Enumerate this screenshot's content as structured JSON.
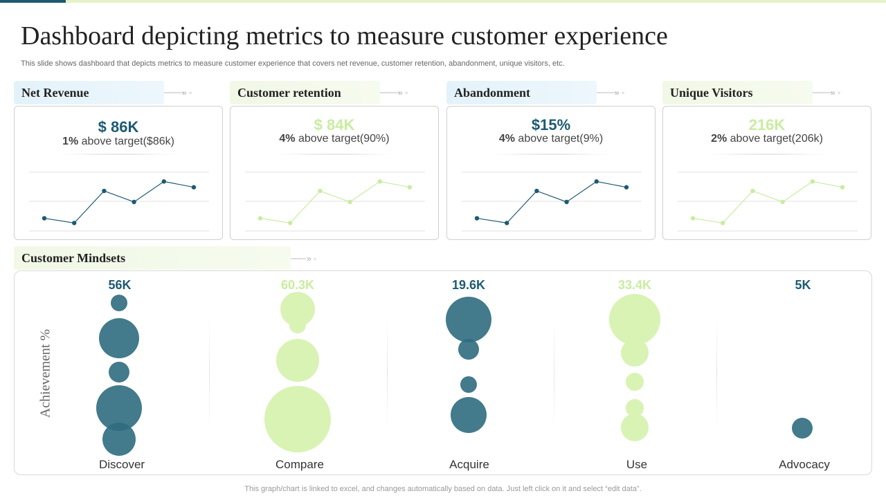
{
  "title": "Dashboard depicting metrics to measure customer experience",
  "subtitle": "This slide shows dashboard that depicts metrics to measure customer experience that covers net revenue, customer retention, abandonment, unique visitors, etc.",
  "arrow_glyph": "» ◦",
  "colors": {
    "dark": "#1c5a72",
    "dark_bubble": "#2f6b80",
    "light": "#c9eca0",
    "light_bubble": "#d8f3b3"
  },
  "cards": [
    {
      "label": "Net Revenue",
      "value": "$ 86K",
      "note_bold": "1%",
      "note_rest": " above target($86k)",
      "theme": "dark"
    },
    {
      "label": "Customer retention",
      "value": "$ 84K",
      "note_bold": "4%",
      "note_rest": " above target(90%)",
      "theme": "light"
    },
    {
      "label": "Abandonment",
      "value": "$15%",
      "note_bold": "4%",
      "note_rest": " above target(9%)",
      "theme": "dark"
    },
    {
      "label": "Unique Visitors",
      "value": "216K",
      "note_bold": "2%",
      "note_rest": " above target(206k)",
      "theme": "light"
    }
  ],
  "sparkline_levels": [
    0.19,
    0.1,
    0.71,
    0.5,
    0.89,
    0.78
  ],
  "mindsets": {
    "label": "Customer Mindsets",
    "ylabel": "Achievement %",
    "columns": [
      {
        "label": "Discover",
        "value": "56K",
        "theme": "dark"
      },
      {
        "label": "Compare",
        "value": "60.3K",
        "theme": "light"
      },
      {
        "label": "Acquire",
        "value": "19.6K",
        "theme": "dark"
      },
      {
        "label": "Use",
        "value": "33.4K",
        "theme": "light"
      },
      {
        "label": "Advocacy",
        "value": "5K",
        "theme": "dark"
      }
    ]
  },
  "footnote": "This graph/chart is linked to excel,  and changes automatically based on data. Just left click on it and select “edit data”."
}
